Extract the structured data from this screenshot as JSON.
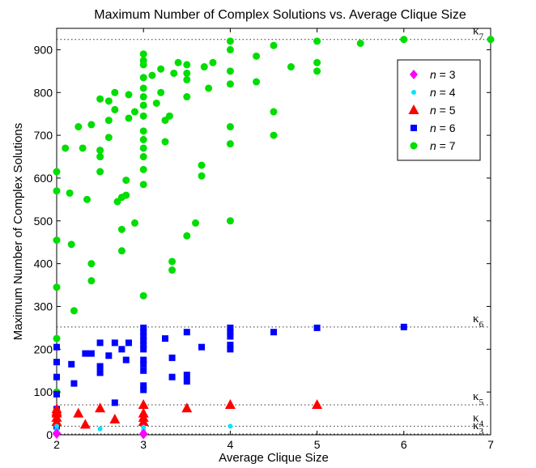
{
  "chart_data": {
    "type": "scatter",
    "title": "Maximum Number of Complex Solutions vs. Average Clique Size",
    "xlabel": "Average Clique Size",
    "ylabel": "Maximum Number of Complex Solutions",
    "xlim": [
      2,
      7
    ],
    "ylim": [
      0,
      950
    ],
    "xticks": [
      2,
      3,
      4,
      5,
      6,
      7
    ],
    "yticks": [
      0,
      100,
      200,
      300,
      400,
      500,
      600,
      700,
      800,
      900
    ],
    "grid": false,
    "legend_position": "top-right",
    "reference_lines": [
      {
        "label": "κ3",
        "y": 2
      },
      {
        "label": "κ4",
        "y": 20
      },
      {
        "label": "κ5",
        "y": 70
      },
      {
        "label": "κ6",
        "y": 252
      },
      {
        "label": "κ7",
        "y": 924
      }
    ],
    "series": [
      {
        "name": "n = 3",
        "marker": "diamond",
        "color": "#ff00ff",
        "points": [
          [
            2,
            2
          ],
          [
            2,
            4
          ],
          [
            3,
            1
          ],
          [
            3,
            3
          ]
        ]
      },
      {
        "name": "n = 4",
        "marker": "point",
        "color": "#00e5ff",
        "points": [
          [
            2,
            6
          ],
          [
            2,
            12
          ],
          [
            2,
            20
          ],
          [
            2.5,
            14
          ],
          [
            3,
            10
          ],
          [
            3,
            18
          ],
          [
            4,
            20
          ]
        ]
      },
      {
        "name": "n = 5",
        "marker": "triangle",
        "color": "#ff0000",
        "points": [
          [
            2,
            30
          ],
          [
            2,
            40
          ],
          [
            2,
            50
          ],
          [
            2,
            54
          ],
          [
            2,
            60
          ],
          [
            2.25,
            50
          ],
          [
            2.33,
            24
          ],
          [
            2.5,
            62
          ],
          [
            2.67,
            36
          ],
          [
            3,
            30
          ],
          [
            3,
            40
          ],
          [
            3,
            50
          ],
          [
            3,
            70
          ],
          [
            3.5,
            62
          ],
          [
            4,
            70
          ],
          [
            5,
            70
          ]
        ]
      },
      {
        "name": "n = 6",
        "marker": "square",
        "color": "#0000ff",
        "points": [
          [
            2,
            20
          ],
          [
            2,
            60
          ],
          [
            2,
            95
          ],
          [
            2,
            135
          ],
          [
            2,
            170
          ],
          [
            2,
            205
          ],
          [
            2.17,
            165
          ],
          [
            2.2,
            120
          ],
          [
            2.33,
            190
          ],
          [
            2.4,
            190
          ],
          [
            2.5,
            145
          ],
          [
            2.5,
            160
          ],
          [
            2.5,
            215
          ],
          [
            2.6,
            185
          ],
          [
            2.67,
            75
          ],
          [
            2.67,
            215
          ],
          [
            2.75,
            200
          ],
          [
            2.8,
            175
          ],
          [
            2.83,
            215
          ],
          [
            3,
            105
          ],
          [
            3,
            115
          ],
          [
            3,
            150
          ],
          [
            3,
            165
          ],
          [
            3,
            175
          ],
          [
            3,
            200
          ],
          [
            3,
            210
          ],
          [
            3,
            220
          ],
          [
            3,
            230
          ],
          [
            3,
            240
          ],
          [
            3,
            250
          ],
          [
            3.25,
            225
          ],
          [
            3.33,
            135
          ],
          [
            3.33,
            180
          ],
          [
            3.5,
            125
          ],
          [
            3.5,
            140
          ],
          [
            3.5,
            240
          ],
          [
            3.67,
            205
          ],
          [
            4,
            200
          ],
          [
            4,
            210
          ],
          [
            4,
            230
          ],
          [
            4,
            240
          ],
          [
            4,
            250
          ],
          [
            4.5,
            240
          ],
          [
            5,
            250
          ],
          [
            6,
            252
          ]
        ]
      },
      {
        "name": "n = 7",
        "marker": "circle",
        "color": "#00dd00",
        "points": [
          [
            2,
            100
          ],
          [
            2,
            225
          ],
          [
            2,
            345
          ],
          [
            2,
            455
          ],
          [
            2,
            570
          ],
          [
            2,
            615
          ],
          [
            2.1,
            670
          ],
          [
            2.15,
            565
          ],
          [
            2.17,
            445
          ],
          [
            2.2,
            290
          ],
          [
            2.25,
            720
          ],
          [
            2.3,
            670
          ],
          [
            2.35,
            550
          ],
          [
            2.4,
            400
          ],
          [
            2.4,
            360
          ],
          [
            2.4,
            725
          ],
          [
            2.5,
            615
          ],
          [
            2.5,
            650
          ],
          [
            2.5,
            665
          ],
          [
            2.5,
            785
          ],
          [
            2.6,
            695
          ],
          [
            2.6,
            735
          ],
          [
            2.6,
            780
          ],
          [
            2.67,
            760
          ],
          [
            2.67,
            800
          ],
          [
            2.7,
            545
          ],
          [
            2.75,
            430
          ],
          [
            2.75,
            480
          ],
          [
            2.75,
            555
          ],
          [
            2.8,
            560
          ],
          [
            2.8,
            595
          ],
          [
            2.83,
            740
          ],
          [
            2.83,
            795
          ],
          [
            2.9,
            495
          ],
          [
            2.9,
            755
          ],
          [
            3,
            325
          ],
          [
            3,
            585
          ],
          [
            3,
            620
          ],
          [
            3,
            650
          ],
          [
            3,
            670
          ],
          [
            3,
            690
          ],
          [
            3,
            710
          ],
          [
            3,
            745
          ],
          [
            3,
            770
          ],
          [
            3,
            790
          ],
          [
            3,
            810
          ],
          [
            3,
            835
          ],
          [
            3,
            865
          ],
          [
            3,
            875
          ],
          [
            3,
            890
          ],
          [
            3.1,
            840
          ],
          [
            3.15,
            775
          ],
          [
            3.2,
            800
          ],
          [
            3.2,
            855
          ],
          [
            3.25,
            685
          ],
          [
            3.25,
            735
          ],
          [
            3.3,
            745
          ],
          [
            3.33,
            385
          ],
          [
            3.33,
            405
          ],
          [
            3.35,
            845
          ],
          [
            3.4,
            870
          ],
          [
            3.5,
            465
          ],
          [
            3.5,
            790
          ],
          [
            3.5,
            830
          ],
          [
            3.5,
            845
          ],
          [
            3.5,
            865
          ],
          [
            3.6,
            495
          ],
          [
            3.67,
            605
          ],
          [
            3.67,
            630
          ],
          [
            3.7,
            860
          ],
          [
            3.75,
            810
          ],
          [
            3.8,
            870
          ],
          [
            4,
            500
          ],
          [
            4,
            680
          ],
          [
            4,
            720
          ],
          [
            4,
            820
          ],
          [
            4,
            850
          ],
          [
            4,
            900
          ],
          [
            4,
            920
          ],
          [
            4.3,
            825
          ],
          [
            4.3,
            885
          ],
          [
            4.5,
            700
          ],
          [
            4.5,
            755
          ],
          [
            4.5,
            910
          ],
          [
            4.7,
            860
          ],
          [
            5,
            850
          ],
          [
            5,
            870
          ],
          [
            5,
            920
          ],
          [
            5.5,
            915
          ],
          [
            6,
            924
          ],
          [
            7,
            924
          ]
        ]
      }
    ]
  }
}
